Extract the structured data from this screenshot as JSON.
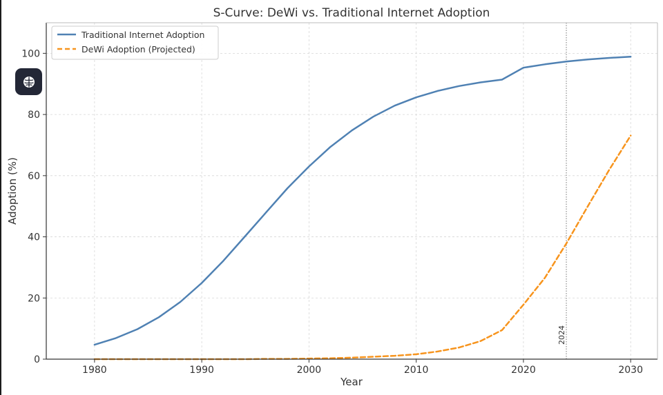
{
  "chart_data": {
    "type": "line",
    "title": "S-Curve: DeWi vs. Traditional Internet Adoption",
    "xlabel": "Year",
    "ylabel": "Adoption (%)",
    "xlim": [
      1975.5,
      2032.5
    ],
    "ylim": [
      0,
      110
    ],
    "xticks": [
      1980,
      1990,
      2000,
      2010,
      2020,
      2030
    ],
    "yticks": [
      0,
      20,
      40,
      60,
      80,
      100
    ],
    "grid": true,
    "legend_position": "top-left",
    "x": [
      1980,
      1982,
      1984,
      1986,
      1988,
      1990,
      1992,
      1994,
      1996,
      1998,
      2000,
      2002,
      2004,
      2006,
      2008,
      2010,
      2012,
      2014,
      2016,
      2018,
      2020,
      2022,
      2024,
      2026,
      2028,
      2030
    ],
    "series": [
      {
        "name": "Traditional Internet Adoption",
        "color": "#4f81b3",
        "style": "solid",
        "values": [
          4.7,
          6.9,
          9.8,
          13.7,
          18.7,
          24.9,
          32.1,
          40.0,
          48.0,
          55.9,
          63.0,
          69.4,
          74.8,
          79.3,
          82.9,
          85.6,
          87.7,
          89.3,
          90.5,
          91.4,
          95.3,
          96.4,
          97.3,
          98.0,
          98.5,
          98.9
        ]
      },
      {
        "name": "DeWi Adoption (Projected)",
        "color": "#f7941d",
        "style": "dashed",
        "values": [
          0.0,
          0.0,
          0.0,
          0.0,
          0.0,
          0.0,
          0.0,
          0.0,
          0.1,
          0.1,
          0.2,
          0.3,
          0.5,
          0.8,
          1.1,
          1.6,
          2.5,
          3.8,
          5.9,
          9.5,
          17.8,
          26.6,
          37.8,
          50.0,
          61.9,
          73.1
        ]
      }
    ],
    "annotation": {
      "x": 2024,
      "text": "2024",
      "color": "#8a8a8a",
      "style": "dotted"
    }
  },
  "toolbar": {
    "icon": "brain-icon"
  }
}
